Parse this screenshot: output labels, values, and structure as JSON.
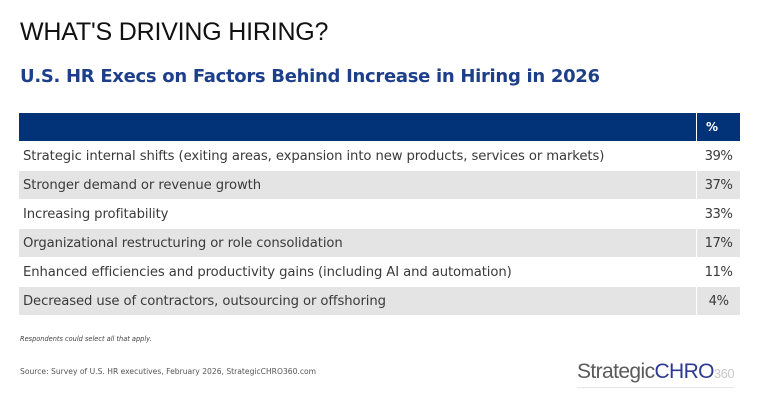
{
  "title": "WHAT'S DRIVING HIRING?",
  "subtitle": "U.S. HR Execs on Factors Behind Increase in Hiring in 2026",
  "table": {
    "header_label": "",
    "header_value": "%",
    "rows": [
      {
        "label": "Strategic internal shifts (exiting areas, expansion into new products, services or markets)",
        "value": "39%"
      },
      {
        "label": "Stronger demand or revenue growth",
        "value": "37%"
      },
      {
        "label": "Increasing profitability",
        "value": "33%"
      },
      {
        "label": "Organizational restructuring or role consolidation",
        "value": "17%"
      },
      {
        "label": "Enhanced efficiencies and productivity gains (including AI and automation)",
        "value": "11%"
      },
      {
        "label": "Decreased use of contractors, outsourcing or offshoring",
        "value": "4%"
      }
    ]
  },
  "note": "Respondents could select all that apply.",
  "source": "Source: Survey of U.S. HR executives, February 2026, StrategicCHRO360.com",
  "logo": {
    "part1": "Strategic",
    "part2": "CHRO",
    "part3": "360"
  },
  "colors": {
    "header_bg": "#023278",
    "subtitle": "#1d3f8a",
    "row_alt": "#e4e4e4"
  },
  "chart_data": {
    "type": "table",
    "title": "WHAT'S DRIVING HIRING?",
    "subtitle": "U.S. HR Execs on Factors Behind Increase in Hiring in 2026",
    "columns": [
      "",
      "%"
    ],
    "categories": [
      "Strategic internal shifts (exiting areas, expansion into new products, services or markets)",
      "Stronger demand or revenue growth",
      "Increasing profitability",
      "Organizational restructuring or role consolidation",
      "Enhanced efficiencies and productivity gains (including AI and automation)",
      "Decreased use of contractors, outsourcing or offshoring"
    ],
    "values": [
      39,
      37,
      33,
      17,
      11,
      4
    ],
    "unit": "%",
    "note": "Respondents could select all that apply.",
    "source": "Source: Survey of U.S. HR executives, February 2026, StrategicCHRO360.com"
  }
}
